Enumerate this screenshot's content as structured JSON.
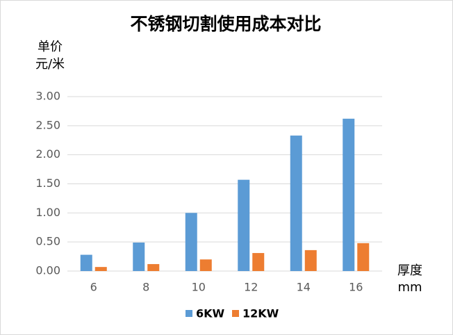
{
  "chart_data": {
    "type": "bar",
    "title": "不锈钢切割使用成本对比",
    "y_label": [
      "单价",
      "元/米"
    ],
    "x_label": [
      "厚度",
      "mm"
    ],
    "categories": [
      "6",
      "8",
      "10",
      "12",
      "14",
      "16"
    ],
    "series": [
      {
        "name": "6KW",
        "color": "#5b9bd5",
        "values": [
          0.28,
          0.49,
          1.0,
          1.57,
          2.33,
          2.62
        ]
      },
      {
        "name": "12KW",
        "color": "#ed7d31",
        "values": [
          0.07,
          0.12,
          0.2,
          0.31,
          0.36,
          0.48
        ]
      }
    ],
    "ylim": [
      0,
      3
    ],
    "yticks": [
      {
        "value": 0,
        "label": "0.00"
      },
      {
        "value": 0.5,
        "label": "0.50"
      },
      {
        "value": 1,
        "label": "1.00"
      },
      {
        "value": 1.5,
        "label": "1.50"
      },
      {
        "value": 2,
        "label": "2.00"
      },
      {
        "value": 2.5,
        "label": "2.50"
      },
      {
        "value": 3,
        "label": "3.00"
      }
    ],
    "grid": true,
    "legend": "bottom"
  }
}
